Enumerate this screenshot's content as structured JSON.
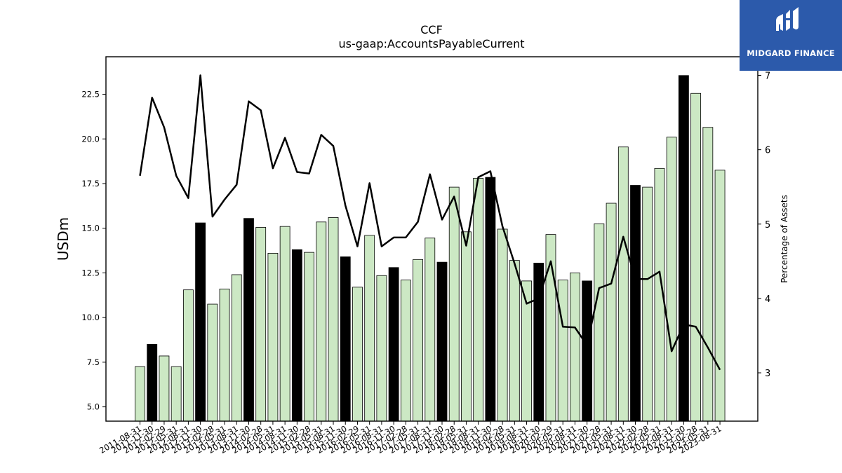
{
  "branding": {
    "logo_text": "MIDGARD FINANCE"
  },
  "chart_data": {
    "type": "bar",
    "title": "CCF",
    "subtitle": "us-gaap:AccountsPayableCurrent",
    "ylabel": "USDm",
    "y2label": "Percentage of Assets",
    "ylim": [
      4.2,
      24.6
    ],
    "y2lim": [
      2.35,
      7.25
    ],
    "yticks": [
      5.0,
      7.5,
      10.0,
      12.5,
      15.0,
      17.5,
      20.0,
      22.5
    ],
    "ytick_labels": [
      "5.0",
      "7.5",
      "10.0",
      "12.5",
      "15.0",
      "17.5",
      "20.0",
      "22.5"
    ],
    "y2ticks": [
      3,
      4,
      5,
      6,
      7
    ],
    "y2tick_labels": [
      "3",
      "4",
      "5",
      "6",
      "7"
    ],
    "grid": false,
    "bar_colors": {
      "q": "#cce8c4",
      "fy": "#000000"
    },
    "line_color": "#000000",
    "categories": [
      "2011-08-31",
      "2011-11-30",
      "2012-02-29",
      "2012-05-31",
      "2012-08-31",
      "2012-11-30",
      "2013-02-28",
      "2013-05-31",
      "2013-08-31",
      "2013-11-30",
      "2014-02-28",
      "2014-05-31",
      "2014-08-31",
      "2014-11-30",
      "2015-02-28",
      "2015-05-31",
      "2015-08-31",
      "2015-11-30",
      "2016-02-29",
      "2016-05-31",
      "2016-08-31",
      "2016-11-30",
      "2017-02-28",
      "2017-05-31",
      "2017-08-31",
      "2017-11-30",
      "2018-02-28",
      "2018-05-31",
      "2018-08-31",
      "2018-11-30",
      "2019-02-28",
      "2019-05-31",
      "2019-08-31",
      "2019-11-30",
      "2020-02-29",
      "2020-05-31",
      "2020-08-31",
      "2020-11-30",
      "2021-02-28",
      "2021-05-31",
      "2021-08-31",
      "2021-11-30",
      "2022-02-28",
      "2022-05-31",
      "2022-08-31",
      "2022-11-30",
      "2023-02-28",
      "2023-05-31",
      "2023-08-31"
    ],
    "series": [
      {
        "type": "bar",
        "values": [
          7.25,
          8.5,
          7.85,
          7.25,
          11.55,
          15.3,
          10.75,
          11.6,
          12.4,
          15.55,
          15.05,
          13.6,
          15.1,
          13.8,
          13.65,
          15.35,
          15.6,
          13.4,
          11.7,
          14.6,
          12.35,
          12.8,
          12.1,
          13.25,
          14.45,
          13.1,
          17.3,
          14.8,
          17.8,
          17.85,
          14.95,
          13.2,
          12.05,
          13.05,
          14.65,
          12.1,
          12.5,
          12.05,
          15.25,
          16.4,
          19.55,
          17.4,
          17.3,
          18.35,
          20.1,
          23.55,
          22.55,
          20.65,
          18.25
        ],
        "fy_flags": [
          0,
          1,
          0,
          0,
          0,
          1,
          0,
          0,
          0,
          1,
          0,
          0,
          0,
          1,
          0,
          0,
          0,
          1,
          0,
          0,
          0,
          1,
          0,
          0,
          0,
          1,
          0,
          0,
          0,
          1,
          0,
          0,
          0,
          1,
          0,
          0,
          0,
          1,
          0,
          0,
          0,
          1,
          0,
          0,
          0,
          1,
          0,
          0,
          0
        ]
      },
      {
        "type": "line",
        "axis": "right",
        "values": [
          5.65,
          6.7,
          6.3,
          5.65,
          5.35,
          7.0,
          5.1,
          5.33,
          5.53,
          6.65,
          6.53,
          5.75,
          6.16,
          5.7,
          5.68,
          6.2,
          6.05,
          5.25,
          4.7,
          5.55,
          4.7,
          4.82,
          4.82,
          5.03,
          5.67,
          5.06,
          5.37,
          4.71,
          5.63,
          5.71,
          4.97,
          4.47,
          3.93,
          4.0,
          4.5,
          3.62,
          3.61,
          3.37,
          4.14,
          4.2,
          4.83,
          4.26,
          4.26,
          4.36,
          3.29,
          3.65,
          3.62,
          3.34,
          3.04
        ]
      }
    ]
  }
}
